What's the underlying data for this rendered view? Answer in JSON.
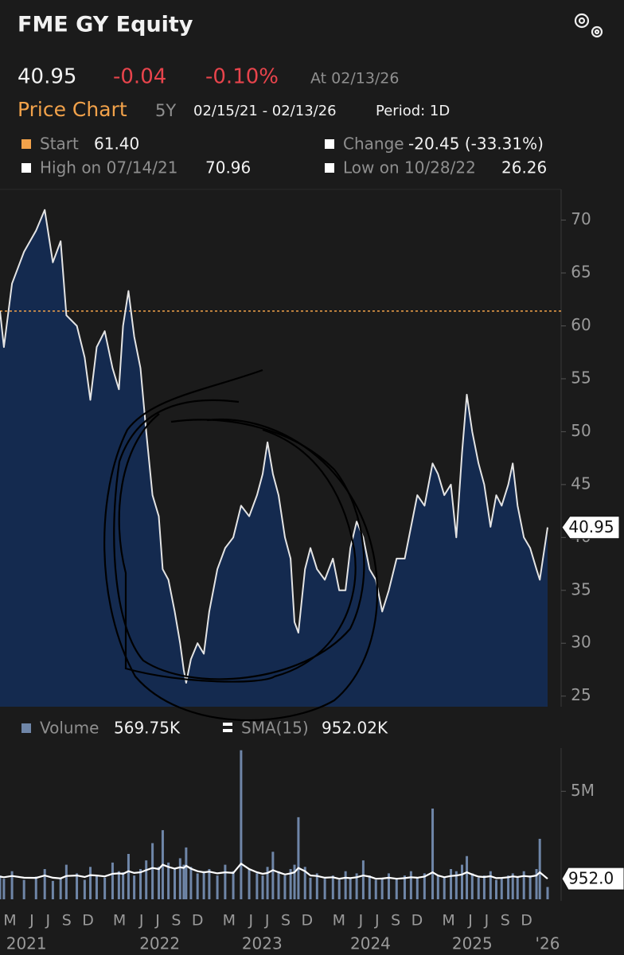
{
  "header": {
    "title": "FME GY Equity",
    "price": "40.95",
    "change": "-0.04",
    "change_pct": "-0.10%",
    "as_of": "At 02/13/26",
    "tab": "Price Chart",
    "range": "5Y",
    "dates": "02/15/21 - 02/13/26",
    "period": "Period: 1D"
  },
  "stats": {
    "start_label": "Start",
    "start": "61.40",
    "change_label": "Change",
    "change": "-20.45 (-33.31%)",
    "high_label": "High on 07/14/21",
    "high": "70.96",
    "low_label": "Low on 10/28/22",
    "low": "26.26"
  },
  "chart_data": [
    {
      "type": "area",
      "color": "#e4e4e4",
      "fill": "#142a4f",
      "x": [
        "2021-02-15",
        "2021-02-28",
        "2021-03-27",
        "2021-05-06",
        "2021-06-15",
        "2021-07-14",
        "2021-08-10",
        "2021-09-05",
        "2021-09-24",
        "2021-10-29",
        "2021-11-24",
        "2021-12-13",
        "2022-01-03",
        "2022-01-30",
        "2022-02-25",
        "2022-03-18",
        "2022-04-01",
        "2022-04-19",
        "2022-05-08",
        "2022-05-29",
        "2022-06-17",
        "2022-07-08",
        "2022-07-29",
        "2022-08-11",
        "2022-08-30",
        "2022-09-20",
        "2022-10-08",
        "2022-10-20",
        "2022-10-28",
        "2022-11-13",
        "2022-12-05",
        "2022-12-26",
        "2023-01-13",
        "2023-02-09",
        "2023-03-07",
        "2023-04-03",
        "2023-04-29",
        "2023-05-26",
        "2023-06-21",
        "2023-07-10",
        "2023-07-26",
        "2023-08-13",
        "2023-09-01",
        "2023-09-22",
        "2023-10-11",
        "2023-10-24",
        "2023-11-06",
        "2023-11-28",
        "2023-12-16",
        "2024-01-07",
        "2024-02-02",
        "2024-02-29",
        "2024-03-21",
        "2024-04-11",
        "2024-04-27",
        "2024-05-18",
        "2024-06-09",
        "2024-06-30",
        "2024-07-21",
        "2024-08-11",
        "2024-09-02",
        "2024-09-28",
        "2024-10-25",
        "2024-11-15",
        "2024-12-06",
        "2024-12-30",
        "2025-01-26",
        "2025-02-13",
        "2025-03-06",
        "2025-03-28",
        "2025-04-15",
        "2025-05-04",
        "2025-05-20",
        "2025-06-07",
        "2025-06-28",
        "2025-07-17",
        "2025-08-07",
        "2025-08-26",
        "2025-09-13",
        "2025-10-05",
        "2025-10-20",
        "2025-11-05",
        "2025-11-26",
        "2025-12-17",
        "2026-01-07",
        "2026-01-18",
        "2026-02-13"
      ],
      "values": [
        61.4,
        58,
        64,
        67,
        69,
        70.96,
        66,
        68,
        61,
        60,
        57,
        53,
        58,
        59.5,
        56,
        54,
        60,
        63.3,
        59,
        56,
        50,
        44,
        42,
        37,
        36,
        33,
        30,
        27.5,
        26.26,
        28.5,
        30,
        29,
        33,
        37,
        39,
        40,
        43,
        42,
        44,
        46,
        49,
        46,
        44,
        40,
        38,
        32,
        31,
        37,
        39,
        37,
        36,
        38,
        35,
        35,
        39,
        41.5,
        40,
        37,
        36,
        33,
        35,
        38,
        38,
        41,
        44,
        43,
        47,
        46,
        44,
        45,
        40,
        48,
        53.5,
        50,
        47,
        45,
        41,
        44,
        43,
        45,
        47,
        43,
        40,
        39,
        37,
        36,
        40.95
      ],
      "xlim": [
        "2021-02-15",
        "2026-02-13"
      ],
      "ylim": [
        24,
        72.9
      ],
      "yticks": [
        25,
        30,
        35,
        40,
        45,
        50,
        55,
        60,
        65,
        70
      ],
      "grid": false,
      "reference_line": {
        "value": 61.4,
        "color": "#f2a24a"
      }
    },
    {
      "type": "bar",
      "x": [
        "2021-02-15",
        "2021-02-28",
        "2021-03-27",
        "2021-05-06",
        "2021-06-15",
        "2021-07-14",
        "2021-08-10",
        "2021-09-05",
        "2021-09-24",
        "2021-10-29",
        "2021-11-24",
        "2021-12-13",
        "2022-01-03",
        "2022-01-30",
        "2022-02-25",
        "2022-03-18",
        "2022-04-01",
        "2022-04-19",
        "2022-05-08",
        "2022-05-29",
        "2022-06-17",
        "2022-07-08",
        "2022-07-29",
        "2022-08-11",
        "2022-08-30",
        "2022-09-20",
        "2022-10-08",
        "2022-10-20",
        "2022-10-28",
        "2022-11-13",
        "2022-12-05",
        "2022-12-26",
        "2023-01-13",
        "2023-02-09",
        "2023-03-07",
        "2023-04-03",
        "2023-04-29",
        "2023-05-26",
        "2023-06-21",
        "2023-07-10",
        "2023-07-26",
        "2023-08-13",
        "2023-09-01",
        "2023-09-22",
        "2023-10-11",
        "2023-10-24",
        "2023-11-06",
        "2023-11-28",
        "2023-12-16",
        "2024-01-07",
        "2024-02-02",
        "2024-02-29",
        "2024-03-21",
        "2024-04-11",
        "2024-04-27",
        "2024-05-18",
        "2024-06-09",
        "2024-06-30",
        "2024-07-21",
        "2024-08-11",
        "2024-09-02",
        "2024-09-28",
        "2024-10-25",
        "2024-11-15",
        "2024-12-06",
        "2024-12-30",
        "2025-01-26",
        "2025-02-13",
        "2025-03-06",
        "2025-03-28",
        "2025-04-15",
        "2025-05-04",
        "2025-05-20",
        "2025-06-07",
        "2025-06-28",
        "2025-07-17",
        "2025-08-07",
        "2025-08-26",
        "2025-09-13",
        "2025-10-05",
        "2025-10-20",
        "2025-11-05",
        "2025-11-26",
        "2025-12-17",
        "2026-01-07",
        "2026-01-18",
        "2026-02-13"
      ],
      "series": [
        {
          "name": "Volume",
          "color": "#6f86a8",
          "legend_value": "569.75K",
          "values": [
            1100000,
            950000,
            1300000,
            900000,
            1050000,
            1400000,
            850000,
            980000,
            1600000,
            1200000,
            900000,
            1500000,
            1100000,
            1000000,
            1700000,
            1300000,
            1250000,
            2100000,
            1100000,
            1400000,
            1800000,
            2600000,
            1500000,
            3200000,
            1700000,
            1400000,
            1900000,
            1600000,
            2400000,
            1500000,
            1200000,
            1300000,
            1400000,
            1100000,
            1600000,
            1300000,
            6900000,
            1400000,
            1200000,
            1100000,
            1500000,
            2200000,
            1300000,
            1100000,
            1400000,
            1600000,
            3800000,
            1500000,
            1000000,
            1200000,
            950000,
            1100000,
            900000,
            1300000,
            1000000,
            1200000,
            1800000,
            1100000,
            900000,
            1000000,
            1200000,
            950000,
            1100000,
            1300000,
            1000000,
            1200000,
            4200000,
            1100000,
            1000000,
            1400000,
            1300000,
            1600000,
            2000000,
            1200000,
            1000000,
            1100000,
            1300000,
            900000,
            1000000,
            1100000,
            1200000,
            1000000,
            1300000,
            1100000,
            1400000,
            2800000,
            569750
          ]
        },
        {
          "name": "SMA(15)",
          "color": "#ffffff",
          "type": "line",
          "legend_value": "952.02K",
          "callout": "952.0",
          "values": [
            1050000,
            1020000,
            1080000,
            1000000,
            990000,
            1100000,
            1000000,
            970000,
            1080000,
            1100000,
            1030000,
            1120000,
            1100000,
            1060000,
            1180000,
            1200000,
            1180000,
            1300000,
            1220000,
            1250000,
            1350000,
            1450000,
            1400000,
            1600000,
            1500000,
            1420000,
            1480000,
            1450000,
            1550000,
            1420000,
            1300000,
            1250000,
            1280000,
            1200000,
            1250000,
            1220000,
            1650000,
            1400000,
            1250000,
            1180000,
            1220000,
            1350000,
            1250000,
            1150000,
            1200000,
            1250000,
            1450000,
            1300000,
            1100000,
            1080000,
            1000000,
            1020000,
            950000,
            1000000,
            980000,
            1020000,
            1100000,
            1050000,
            950000,
            960000,
            1000000,
            950000,
            980000,
            1020000,
            1000000,
            1050000,
            1250000,
            1100000,
            1020000,
            1080000,
            1100000,
            1150000,
            1250000,
            1150000,
            1050000,
            1030000,
            1070000,
            980000,
            990000,
            1020000,
            1060000,
            1030000,
            1080000,
            1050000,
            1100000,
            1250000,
            952020
          ]
        }
      ],
      "xlim": [
        "2021-02-15",
        "2026-02-13"
      ],
      "ylim": [
        0,
        7000000
      ],
      "yticks": [
        {
          "value": 5000000,
          "label": "5M"
        }
      ],
      "xticks": [
        {
          "value": "2021-03-20",
          "label": "M"
        },
        {
          "value": "2021-06-01",
          "label": "J"
        },
        {
          "value": "2021-07-25",
          "label": "J"
        },
        {
          "value": "2021-09-25",
          "label": "S"
        },
        {
          "value": "2021-12-05",
          "label": "D"
        },
        {
          "value": "2022-03-20",
          "label": "M"
        },
        {
          "value": "2022-06-01",
          "label": "J"
        },
        {
          "value": "2022-07-25",
          "label": "J"
        },
        {
          "value": "2022-09-25",
          "label": "S"
        },
        {
          "value": "2022-12-05",
          "label": "D"
        },
        {
          "value": "2023-03-20",
          "label": "M"
        },
        {
          "value": "2023-06-01",
          "label": "J"
        },
        {
          "value": "2023-07-25",
          "label": "J"
        },
        {
          "value": "2023-09-25",
          "label": "S"
        },
        {
          "value": "2023-12-05",
          "label": "D"
        },
        {
          "value": "2024-03-20",
          "label": "M"
        },
        {
          "value": "2024-06-01",
          "label": "J"
        },
        {
          "value": "2024-07-25",
          "label": "J"
        },
        {
          "value": "2024-09-25",
          "label": "S"
        },
        {
          "value": "2024-12-05",
          "label": "D"
        },
        {
          "value": "2025-03-20",
          "label": "M"
        },
        {
          "value": "2025-06-01",
          "label": "J"
        },
        {
          "value": "2025-07-25",
          "label": "J"
        },
        {
          "value": "2025-09-25",
          "label": "S"
        },
        {
          "value": "2025-12-05",
          "label": "D"
        }
      ],
      "year_ticks": [
        {
          "value": "2021-05-14",
          "label": "2021"
        },
        {
          "value": "2022-08-01",
          "label": "2022"
        },
        {
          "value": "2023-07-08",
          "label": "2023"
        },
        {
          "value": "2024-07-03",
          "label": "2024"
        },
        {
          "value": "2025-06-07",
          "label": "2025"
        },
        {
          "value": "2026-02-13",
          "label": "'26"
        }
      ]
    }
  ]
}
